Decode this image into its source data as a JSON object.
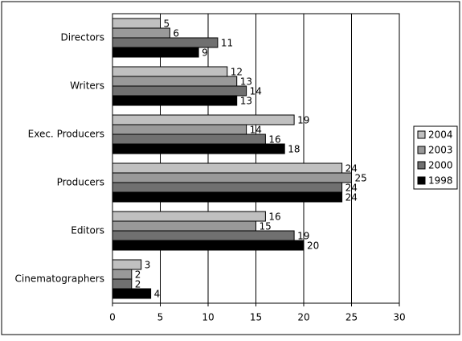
{
  "chart_data": {
    "type": "hbar",
    "categories": [
      "Directors",
      "Writers",
      "Exec. Producers",
      "Producers",
      "Editors",
      "Cinematographers"
    ],
    "series": [
      {
        "name": "2004",
        "color": "#c0c0c0",
        "values": [
          5,
          12,
          19,
          24,
          16,
          3
        ]
      },
      {
        "name": "2003",
        "color": "#999999",
        "values": [
          6,
          13,
          14,
          25,
          15,
          2
        ]
      },
      {
        "name": "2000",
        "color": "#707070",
        "values": [
          11,
          14,
          16,
          24,
          19,
          2
        ]
      },
      {
        "name": "1998",
        "color": "#000000",
        "values": [
          9,
          13,
          18,
          24,
          20,
          4
        ]
      }
    ],
    "xlim": [
      0,
      30
    ],
    "xticks": [
      0,
      5,
      10,
      15,
      20,
      25,
      30
    ],
    "grid": true,
    "legend": "right"
  }
}
